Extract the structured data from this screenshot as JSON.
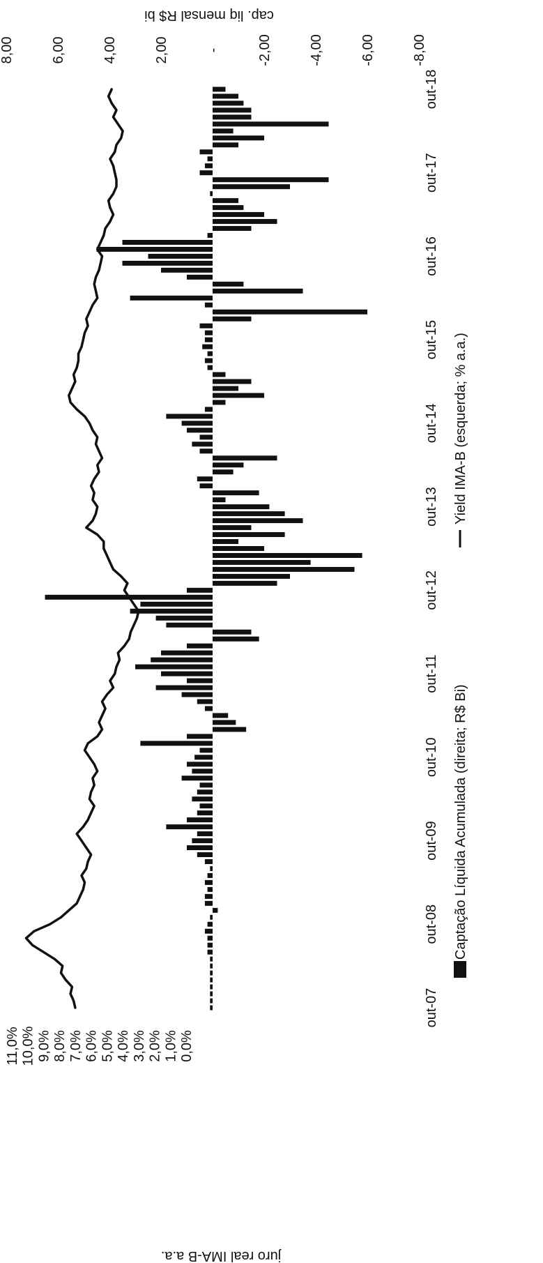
{
  "chart_data": {
    "type": "bar+line",
    "orientation": "rotated-90-clockwise",
    "title": "",
    "left_axis": {
      "label": "juro real IMA-B a.a.",
      "range": [
        0,
        11
      ],
      "ticks": [
        "0,0%",
        "1,0%",
        "2,0%",
        "3,0%",
        "4,0%",
        "5,0%",
        "6,0%",
        "7,0%",
        "8,0%",
        "9,0%",
        "10,0%",
        "11,0%"
      ]
    },
    "right_axis": {
      "label": "cap. liq mensal R$ bi",
      "range": [
        -8,
        8
      ],
      "ticks": [
        "-8,00",
        "-6,00",
        "-4,00",
        "-2,00",
        "-",
        "2,00",
        "4,00",
        "6,00",
        "8,00"
      ]
    },
    "x_axis": {
      "ticks": [
        "out-07",
        "out-08",
        "out-09",
        "out-10",
        "out-11",
        "out-12",
        "out-13",
        "out-14",
        "out-15",
        "out-16",
        "out-17",
        "out-18"
      ]
    },
    "legend": {
      "placement": "bottom",
      "items": [
        {
          "label": "Captação Líquida Acumulada (direita; R$ Bi)",
          "kind": "bar",
          "color": "#111111"
        },
        {
          "label": "Yield IMA-B (esquerda; % a.a.)",
          "kind": "line",
          "color": "#111111"
        }
      ]
    },
    "series": [
      {
        "name": "Yield IMA-B (esquerda; % a.a.)",
        "type": "line",
        "points": [
          [
            "2007-10",
            7.0
          ],
          [
            "2007-11",
            7.1
          ],
          [
            "2007-12",
            7.3
          ],
          [
            "2008-01",
            7.2
          ],
          [
            "2008-02",
            7.6
          ],
          [
            "2008-03",
            7.9
          ],
          [
            "2008-04",
            7.8
          ],
          [
            "2008-05",
            8.3
          ],
          [
            "2008-06",
            9.0
          ],
          [
            "2008-07",
            9.7
          ],
          [
            "2008-08",
            10.1
          ],
          [
            "2008-09",
            9.6
          ],
          [
            "2008-10",
            8.6
          ],
          [
            "2008-11",
            7.9
          ],
          [
            "2008-12",
            7.4
          ],
          [
            "2009-01",
            6.9
          ],
          [
            "2009-02",
            6.7
          ],
          [
            "2009-03",
            6.5
          ],
          [
            "2009-04",
            6.4
          ],
          [
            "2009-05",
            6.6
          ],
          [
            "2009-06",
            6.3
          ],
          [
            "2009-07",
            6.2
          ],
          [
            "2009-08",
            6.0
          ],
          [
            "2009-09",
            6.3
          ],
          [
            "2009-10",
            6.6
          ],
          [
            "2009-11",
            6.9
          ],
          [
            "2009-12",
            6.5
          ],
          [
            "2010-01",
            6.2
          ],
          [
            "2010-02",
            6.0
          ],
          [
            "2010-03",
            5.8
          ],
          [
            "2010-04",
            6.1
          ],
          [
            "2010-05",
            6.0
          ],
          [
            "2010-06",
            5.8
          ],
          [
            "2010-07",
            5.9
          ],
          [
            "2010-08",
            5.6
          ],
          [
            "2010-09",
            5.8
          ],
          [
            "2010-10",
            6.1
          ],
          [
            "2010-11",
            6.4
          ],
          [
            "2010-12",
            6.2
          ],
          [
            "2011-01",
            5.6
          ],
          [
            "2011-02",
            5.3
          ],
          [
            "2011-03",
            5.5
          ],
          [
            "2011-04",
            5.3
          ],
          [
            "2011-05",
            5.1
          ],
          [
            "2011-06",
            5.3
          ],
          [
            "2011-07",
            5.0
          ],
          [
            "2011-08",
            4.6
          ],
          [
            "2011-09",
            4.8
          ],
          [
            "2011-10",
            4.5
          ],
          [
            "2011-11",
            4.4
          ],
          [
            "2011-12",
            4.2
          ],
          [
            "2012-01",
            4.3
          ],
          [
            "2012-02",
            3.9
          ],
          [
            "2012-03",
            3.6
          ],
          [
            "2012-04",
            3.5
          ],
          [
            "2012-05",
            3.3
          ],
          [
            "2012-06",
            3.1
          ],
          [
            "2012-07",
            3.0
          ],
          [
            "2012-08",
            3.3
          ],
          [
            "2012-09",
            3.6
          ],
          [
            "2012-10",
            3.9
          ],
          [
            "2012-11",
            3.7
          ],
          [
            "2012-12",
            4.1
          ],
          [
            "2013-01",
            4.6
          ],
          [
            "2013-02",
            4.8
          ],
          [
            "2013-03",
            5.0
          ],
          [
            "2013-04",
            5.2
          ],
          [
            "2013-05",
            5.2
          ],
          [
            "2013-06",
            5.6
          ],
          [
            "2013-07",
            6.3
          ],
          [
            "2013-08",
            5.9
          ],
          [
            "2013-09",
            5.7
          ],
          [
            "2013-10",
            5.6
          ],
          [
            "2013-11",
            5.9
          ],
          [
            "2013-12",
            5.8
          ],
          [
            "2014-01",
            6.0
          ],
          [
            "2014-02",
            5.8
          ],
          [
            "2014-03",
            5.5
          ],
          [
            "2014-04",
            5.6
          ],
          [
            "2014-05",
            5.3
          ],
          [
            "2014-06",
            5.5
          ],
          [
            "2014-07",
            5.7
          ],
          [
            "2014-08",
            5.6
          ],
          [
            "2014-09",
            5.9
          ],
          [
            "2014-10",
            6.1
          ],
          [
            "2014-11",
            6.4
          ],
          [
            "2014-12",
            6.9
          ],
          [
            "2015-01",
            7.3
          ],
          [
            "2015-02",
            7.4
          ],
          [
            "2015-03",
            7.2
          ],
          [
            "2015-04",
            7.0
          ],
          [
            "2015-05",
            7.1
          ],
          [
            "2015-06",
            6.9
          ],
          [
            "2015-07",
            6.8
          ],
          [
            "2015-08",
            6.8
          ],
          [
            "2015-09",
            6.6
          ],
          [
            "2015-10",
            6.5
          ],
          [
            "2015-11",
            6.4
          ],
          [
            "2015-12",
            6.2
          ],
          [
            "2016-01",
            6.3
          ],
          [
            "2016-02",
            6.1
          ],
          [
            "2016-03",
            5.9
          ],
          [
            "2016-04",
            5.6
          ],
          [
            "2016-05",
            5.7
          ],
          [
            "2016-06",
            5.8
          ],
          [
            "2016-07",
            5.7
          ],
          [
            "2016-08",
            5.5
          ],
          [
            "2016-09",
            5.4
          ],
          [
            "2016-10",
            5.3
          ],
          [
            "2016-11",
            5.6
          ],
          [
            "2016-12",
            5.4
          ],
          [
            "2017-01",
            5.2
          ],
          [
            "2017-02",
            5.1
          ],
          [
            "2017-03",
            4.8
          ],
          [
            "2017-04",
            4.6
          ],
          [
            "2017-05",
            4.8
          ],
          [
            "2017-06",
            4.9
          ],
          [
            "2017-07",
            4.6
          ],
          [
            "2017-08",
            4.4
          ],
          [
            "2017-09",
            4.4
          ],
          [
            "2017-10",
            4.5
          ],
          [
            "2017-11",
            4.6
          ],
          [
            "2017-12",
            4.8
          ],
          [
            "2018-01",
            4.5
          ],
          [
            "2018-02",
            4.4
          ],
          [
            "2018-03",
            4.1
          ],
          [
            "2018-04",
            4.0
          ],
          [
            "2018-05",
            4.3
          ],
          [
            "2018-06",
            4.6
          ],
          [
            "2018-07",
            4.4
          ],
          [
            "2018-08",
            4.7
          ],
          [
            "2018-09",
            4.9
          ],
          [
            "2018-10",
            4.7
          ]
        ]
      },
      {
        "name": "Captação Líquida Acumulada (direita; R$ Bi)",
        "type": "bar",
        "points": [
          [
            "2007-10",
            0.1
          ],
          [
            "2007-11",
            0.1
          ],
          [
            "2007-12",
            0.1
          ],
          [
            "2008-01",
            0.1
          ],
          [
            "2008-02",
            0.1
          ],
          [
            "2008-03",
            0.1
          ],
          [
            "2008-04",
            0.1
          ],
          [
            "2008-05",
            0.1
          ],
          [
            "2008-06",
            0.2
          ],
          [
            "2008-07",
            0.2
          ],
          [
            "2008-08",
            0.2
          ],
          [
            "2008-09",
            0.3
          ],
          [
            "2008-10",
            0.2
          ],
          [
            "2008-11",
            0.1
          ],
          [
            "2008-12",
            -0.2
          ],
          [
            "2009-01",
            0.3
          ],
          [
            "2009-02",
            0.3
          ],
          [
            "2009-03",
            0.2
          ],
          [
            "2009-04",
            0.3
          ],
          [
            "2009-05",
            0.2
          ],
          [
            "2009-06",
            0.1
          ],
          [
            "2009-07",
            0.3
          ],
          [
            "2009-08",
            0.6
          ],
          [
            "2009-09",
            1.0
          ],
          [
            "2009-10",
            0.8
          ],
          [
            "2009-11",
            0.6
          ],
          [
            "2009-12",
            1.8
          ],
          [
            "2010-01",
            1.0
          ],
          [
            "2010-02",
            0.6
          ],
          [
            "2010-03",
            0.5
          ],
          [
            "2010-04",
            0.8
          ],
          [
            "2010-05",
            0.6
          ],
          [
            "2010-06",
            0.5
          ],
          [
            "2010-07",
            1.2
          ],
          [
            "2010-08",
            0.8
          ],
          [
            "2010-09",
            1.0
          ],
          [
            "2010-10",
            0.7
          ],
          [
            "2010-11",
            0.5
          ],
          [
            "2010-12",
            2.8
          ],
          [
            "2011-01",
            1.0
          ],
          [
            "2011-02",
            -1.3
          ],
          [
            "2011-03",
            -0.9
          ],
          [
            "2011-04",
            -0.6
          ],
          [
            "2011-05",
            0.3
          ],
          [
            "2011-06",
            0.6
          ],
          [
            "2011-07",
            1.2
          ],
          [
            "2011-08",
            2.2
          ],
          [
            "2011-09",
            1.0
          ],
          [
            "2011-10",
            2.0
          ],
          [
            "2011-11",
            3.0
          ],
          [
            "2011-12",
            2.4
          ],
          [
            "2012-01",
            2.0
          ],
          [
            "2012-02",
            1.0
          ],
          [
            "2012-03",
            -1.8
          ],
          [
            "2012-04",
            -1.5
          ],
          [
            "2012-05",
            1.8
          ],
          [
            "2012-06",
            2.2
          ],
          [
            "2012-07",
            3.2
          ],
          [
            "2012-08",
            2.8
          ],
          [
            "2012-09",
            6.5
          ],
          [
            "2012-10",
            1.0
          ],
          [
            "2012-11",
            -2.5
          ],
          [
            "2012-12",
            -3.0
          ],
          [
            "2013-01",
            -5.5
          ],
          [
            "2013-02",
            -3.8
          ],
          [
            "2013-03",
            -5.8
          ],
          [
            "2013-04",
            -2.0
          ],
          [
            "2013-05",
            -1.0
          ],
          [
            "2013-06",
            -2.8
          ],
          [
            "2013-07",
            -1.5
          ],
          [
            "2013-08",
            -3.5
          ],
          [
            "2013-09",
            -2.8
          ],
          [
            "2013-10",
            -2.2
          ],
          [
            "2013-11",
            -0.5
          ],
          [
            "2013-12",
            -1.8
          ],
          [
            "2014-01",
            0.5
          ],
          [
            "2014-02",
            0.6
          ],
          [
            "2014-03",
            -0.8
          ],
          [
            "2014-04",
            -1.2
          ],
          [
            "2014-05",
            -2.5
          ],
          [
            "2014-06",
            0.5
          ],
          [
            "2014-07",
            0.8
          ],
          [
            "2014-08",
            0.5
          ],
          [
            "2014-09",
            1.0
          ],
          [
            "2014-10",
            1.2
          ],
          [
            "2014-11",
            1.8
          ],
          [
            "2014-12",
            0.3
          ],
          [
            "2015-01",
            -0.5
          ],
          [
            "2015-02",
            -2.0
          ],
          [
            "2015-03",
            -1.0
          ],
          [
            "2015-04",
            -1.5
          ],
          [
            "2015-05",
            -0.5
          ],
          [
            "2015-06",
            0.2
          ],
          [
            "2015-07",
            0.3
          ],
          [
            "2015-08",
            0.2
          ],
          [
            "2015-09",
            0.4
          ],
          [
            "2015-10",
            0.3
          ],
          [
            "2015-11",
            0.3
          ],
          [
            "2015-12",
            0.5
          ],
          [
            "2016-01",
            -1.5
          ],
          [
            "2016-02",
            -6.0
          ],
          [
            "2016-03",
            0.3
          ],
          [
            "2016-04",
            3.2
          ],
          [
            "2016-05",
            -3.5
          ],
          [
            "2016-06",
            -1.2
          ],
          [
            "2016-07",
            1.0
          ],
          [
            "2016-08",
            2.0
          ],
          [
            "2016-09",
            3.5
          ],
          [
            "2016-10",
            2.5
          ],
          [
            "2016-11",
            4.5
          ],
          [
            "2016-12",
            3.5
          ],
          [
            "2017-01",
            0.2
          ],
          [
            "2017-02",
            -1.5
          ],
          [
            "2017-03",
            -2.5
          ],
          [
            "2017-04",
            -2.0
          ],
          [
            "2017-05",
            -1.2
          ],
          [
            "2017-06",
            -1.0
          ],
          [
            "2017-07",
            0.1
          ],
          [
            "2017-08",
            -3.0
          ],
          [
            "2017-09",
            -4.5
          ],
          [
            "2017-10",
            0.5
          ],
          [
            "2017-11",
            0.3
          ],
          [
            "2017-12",
            0.2
          ],
          [
            "2018-01",
            0.5
          ],
          [
            "2018-02",
            -1.0
          ],
          [
            "2018-03",
            -2.0
          ],
          [
            "2018-04",
            -0.8
          ],
          [
            "2018-05",
            -4.5
          ],
          [
            "2018-06",
            -1.5
          ],
          [
            "2018-07",
            -1.5
          ],
          [
            "2018-08",
            -1.2
          ],
          [
            "2018-09",
            -1.0
          ],
          [
            "2018-10",
            -0.5
          ]
        ]
      }
    ]
  }
}
